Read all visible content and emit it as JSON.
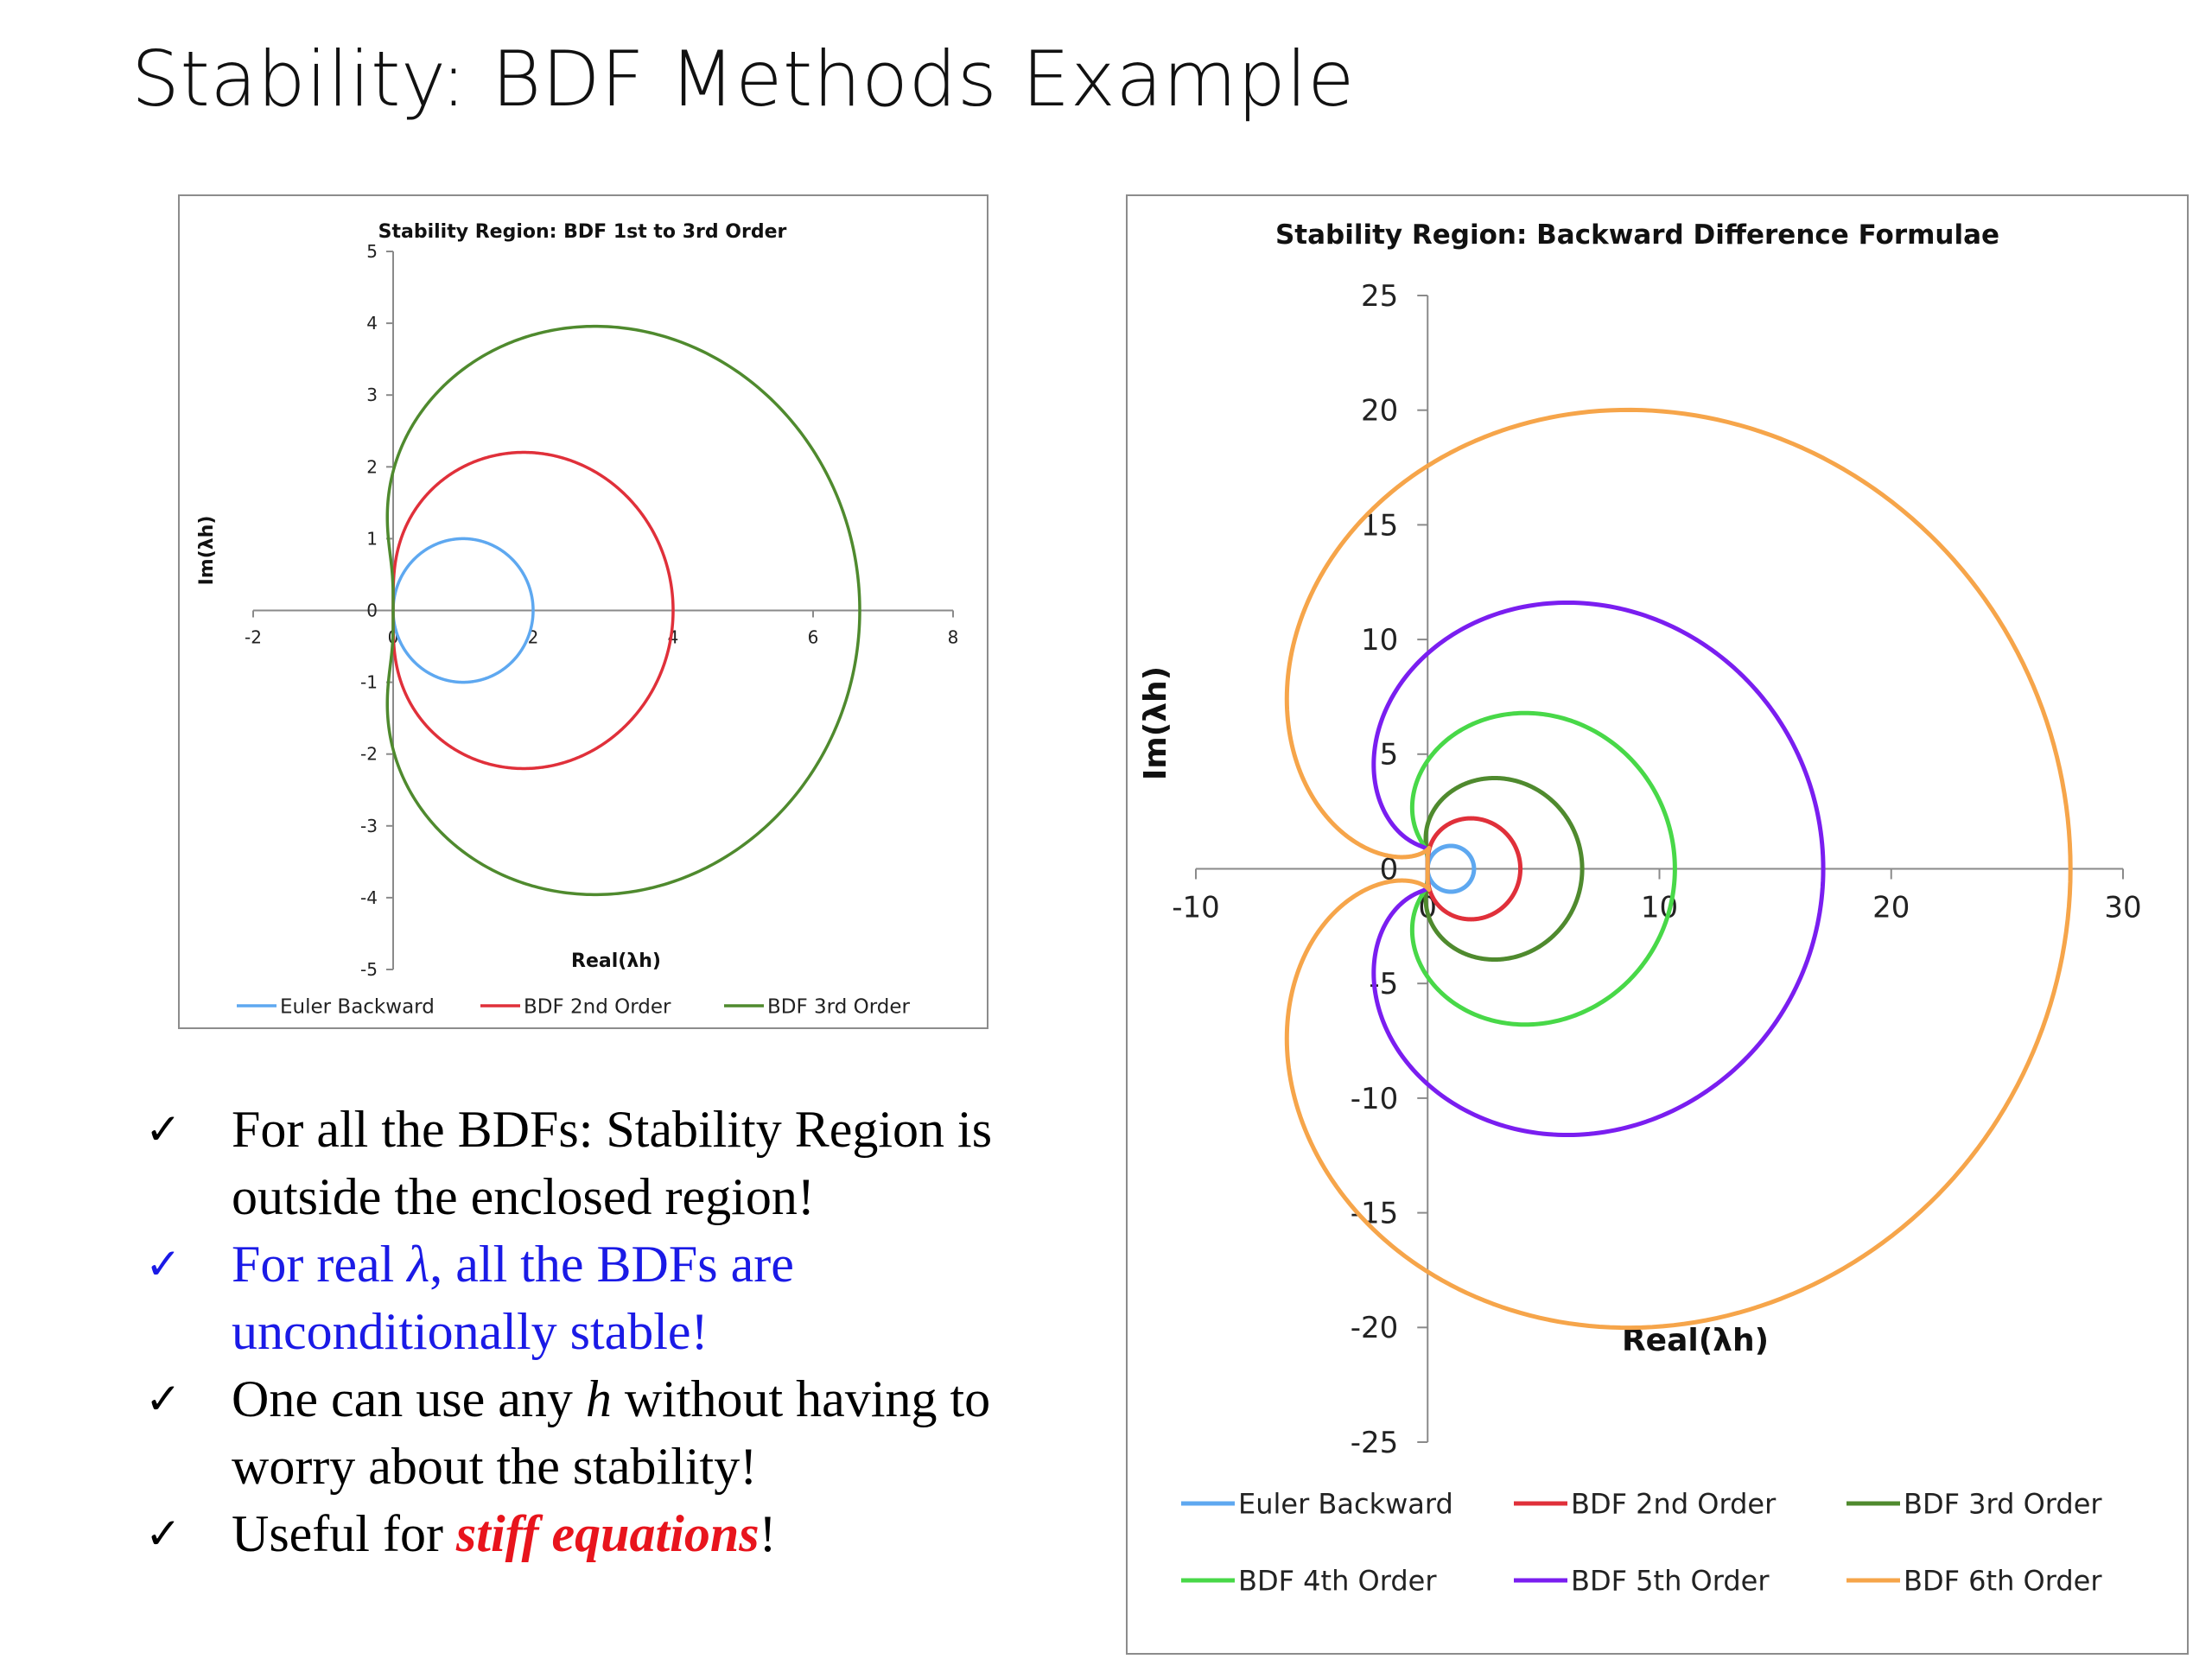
{
  "slide": {
    "title": "Stability: BDF Methods Example"
  },
  "bullets": [
    {
      "check": "✓",
      "text": "For all the BDFs: Stability Region is outside the enclosed region!",
      "color": "#000000"
    },
    {
      "check": "✓",
      "pre": "For real ",
      "italic": "λ",
      "post": ", all the BDFs are unconditionally stable!",
      "color": "#1a1ae6"
    },
    {
      "check": "✓",
      "pre": "One can use any ",
      "italic": "h",
      "post": " without having to worry about the stability!",
      "color": "#000000"
    },
    {
      "check": "✓",
      "pre": "Useful for ",
      "emph": "stiff equations",
      "post": "!",
      "color": "#000000",
      "emph_color": "#e8141c"
    }
  ],
  "chart_data": [
    {
      "type": "line",
      "title": "Stability Region: BDF 1st to 3rd Order",
      "xlabel": "Real(λh)",
      "ylabel": "Im(λh)",
      "xlim": [
        -2,
        8
      ],
      "ylim": [
        -5,
        5
      ],
      "xticks": [
        -2,
        0,
        2,
        4,
        6,
        8
      ],
      "yticks": [
        5,
        4,
        3,
        2,
        1,
        0,
        -1,
        -2,
        -3,
        -4,
        -5
      ],
      "grid": false,
      "legend": "bottom",
      "curve": "boundary of region {1 - z^(-1)/1 - ... } : lambda*h = sum_{j=1..k} (1 - e^{-i theta})^j / j, theta in [0, 2pi]",
      "series": [
        {
          "name": "Euler Backward",
          "order": 1,
          "color": "#5ea8f0",
          "real_extent": [
            0,
            2
          ],
          "imag_extent": [
            -1,
            1
          ]
        },
        {
          "name": "BDF 2nd Order",
          "order": 2,
          "color": "#e0303a",
          "real_extent": [
            0,
            4
          ],
          "imag_extent": [
            -2.24,
            2.24
          ]
        },
        {
          "name": "BDF 3rd Order",
          "order": 3,
          "color": "#4f8a2e",
          "real_extent": [
            -0.1,
            6.67
          ],
          "imag_extent": [
            -3.96,
            3.96
          ]
        }
      ]
    },
    {
      "type": "line",
      "title": "Stability Region:  Backward  Difference  Formulae",
      "xlabel": "Real(λh)",
      "ylabel": "Im(λh)",
      "xlim": [
        -10,
        30
      ],
      "ylim": [
        -25,
        25
      ],
      "xticks": [
        -10,
        0,
        10,
        20,
        30
      ],
      "yticks": [
        25,
        20,
        15,
        10,
        5,
        0,
        -5,
        -10,
        -15,
        -20,
        -25
      ],
      "grid": false,
      "legend": "bottom",
      "curve": "lambda*h = sum_{j=1..k} (1 - e^{-i theta})^j / j, theta in [0, 2pi]",
      "series": [
        {
          "name": "Euler Backward",
          "order": 1,
          "color": "#5ea8f0",
          "real_extent": [
            0,
            2
          ],
          "imag_extent": [
            -1,
            1
          ]
        },
        {
          "name": "BDF 2nd Order",
          "order": 2,
          "color": "#e0303a",
          "real_extent": [
            0,
            4
          ],
          "imag_extent": [
            -2.24,
            2.24
          ]
        },
        {
          "name": "BDF 3rd Order",
          "order": 3,
          "color": "#4f8a2e",
          "real_extent": [
            -0.1,
            6.67
          ],
          "imag_extent": [
            -3.96,
            3.96
          ]
        },
        {
          "name": "BDF 4th Order",
          "order": 4,
          "color": "#48d848",
          "real_extent": [
            -0.67,
            10.67
          ],
          "imag_extent": [
            -6.8,
            6.8
          ]
        },
        {
          "name": "BDF 5th Order",
          "order": 5,
          "color": "#7a1ef0",
          "real_extent": [
            -2.3,
            17.07
          ],
          "imag_extent": [
            -11.5,
            11.5
          ]
        },
        {
          "name": "BDF 6th Order",
          "order": 6,
          "color": "#f6a54a",
          "real_extent": [
            -6.1,
            27.47
          ],
          "imag_extent": [
            -19.6,
            19.6
          ]
        }
      ]
    }
  ]
}
